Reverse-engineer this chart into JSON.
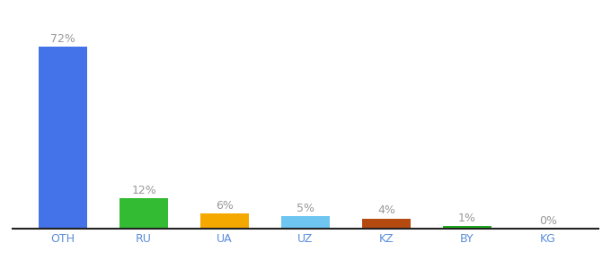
{
  "categories": [
    "OTH",
    "RU",
    "UA",
    "UZ",
    "KZ",
    "BY",
    "KG"
  ],
  "values": [
    72,
    12,
    6,
    5,
    4,
    1,
    0
  ],
  "bar_colors": [
    "#4472e8",
    "#33bb33",
    "#f5a800",
    "#6ec6f0",
    "#b54a10",
    "#22aa22",
    "#cccccc"
  ],
  "label_fontsize": 9,
  "tick_fontsize": 9,
  "bar_width": 0.6,
  "ylim": [
    0,
    82
  ],
  "background_color": "#ffffff",
  "label_color": "#999999",
  "tick_color": "#5b8dd9"
}
